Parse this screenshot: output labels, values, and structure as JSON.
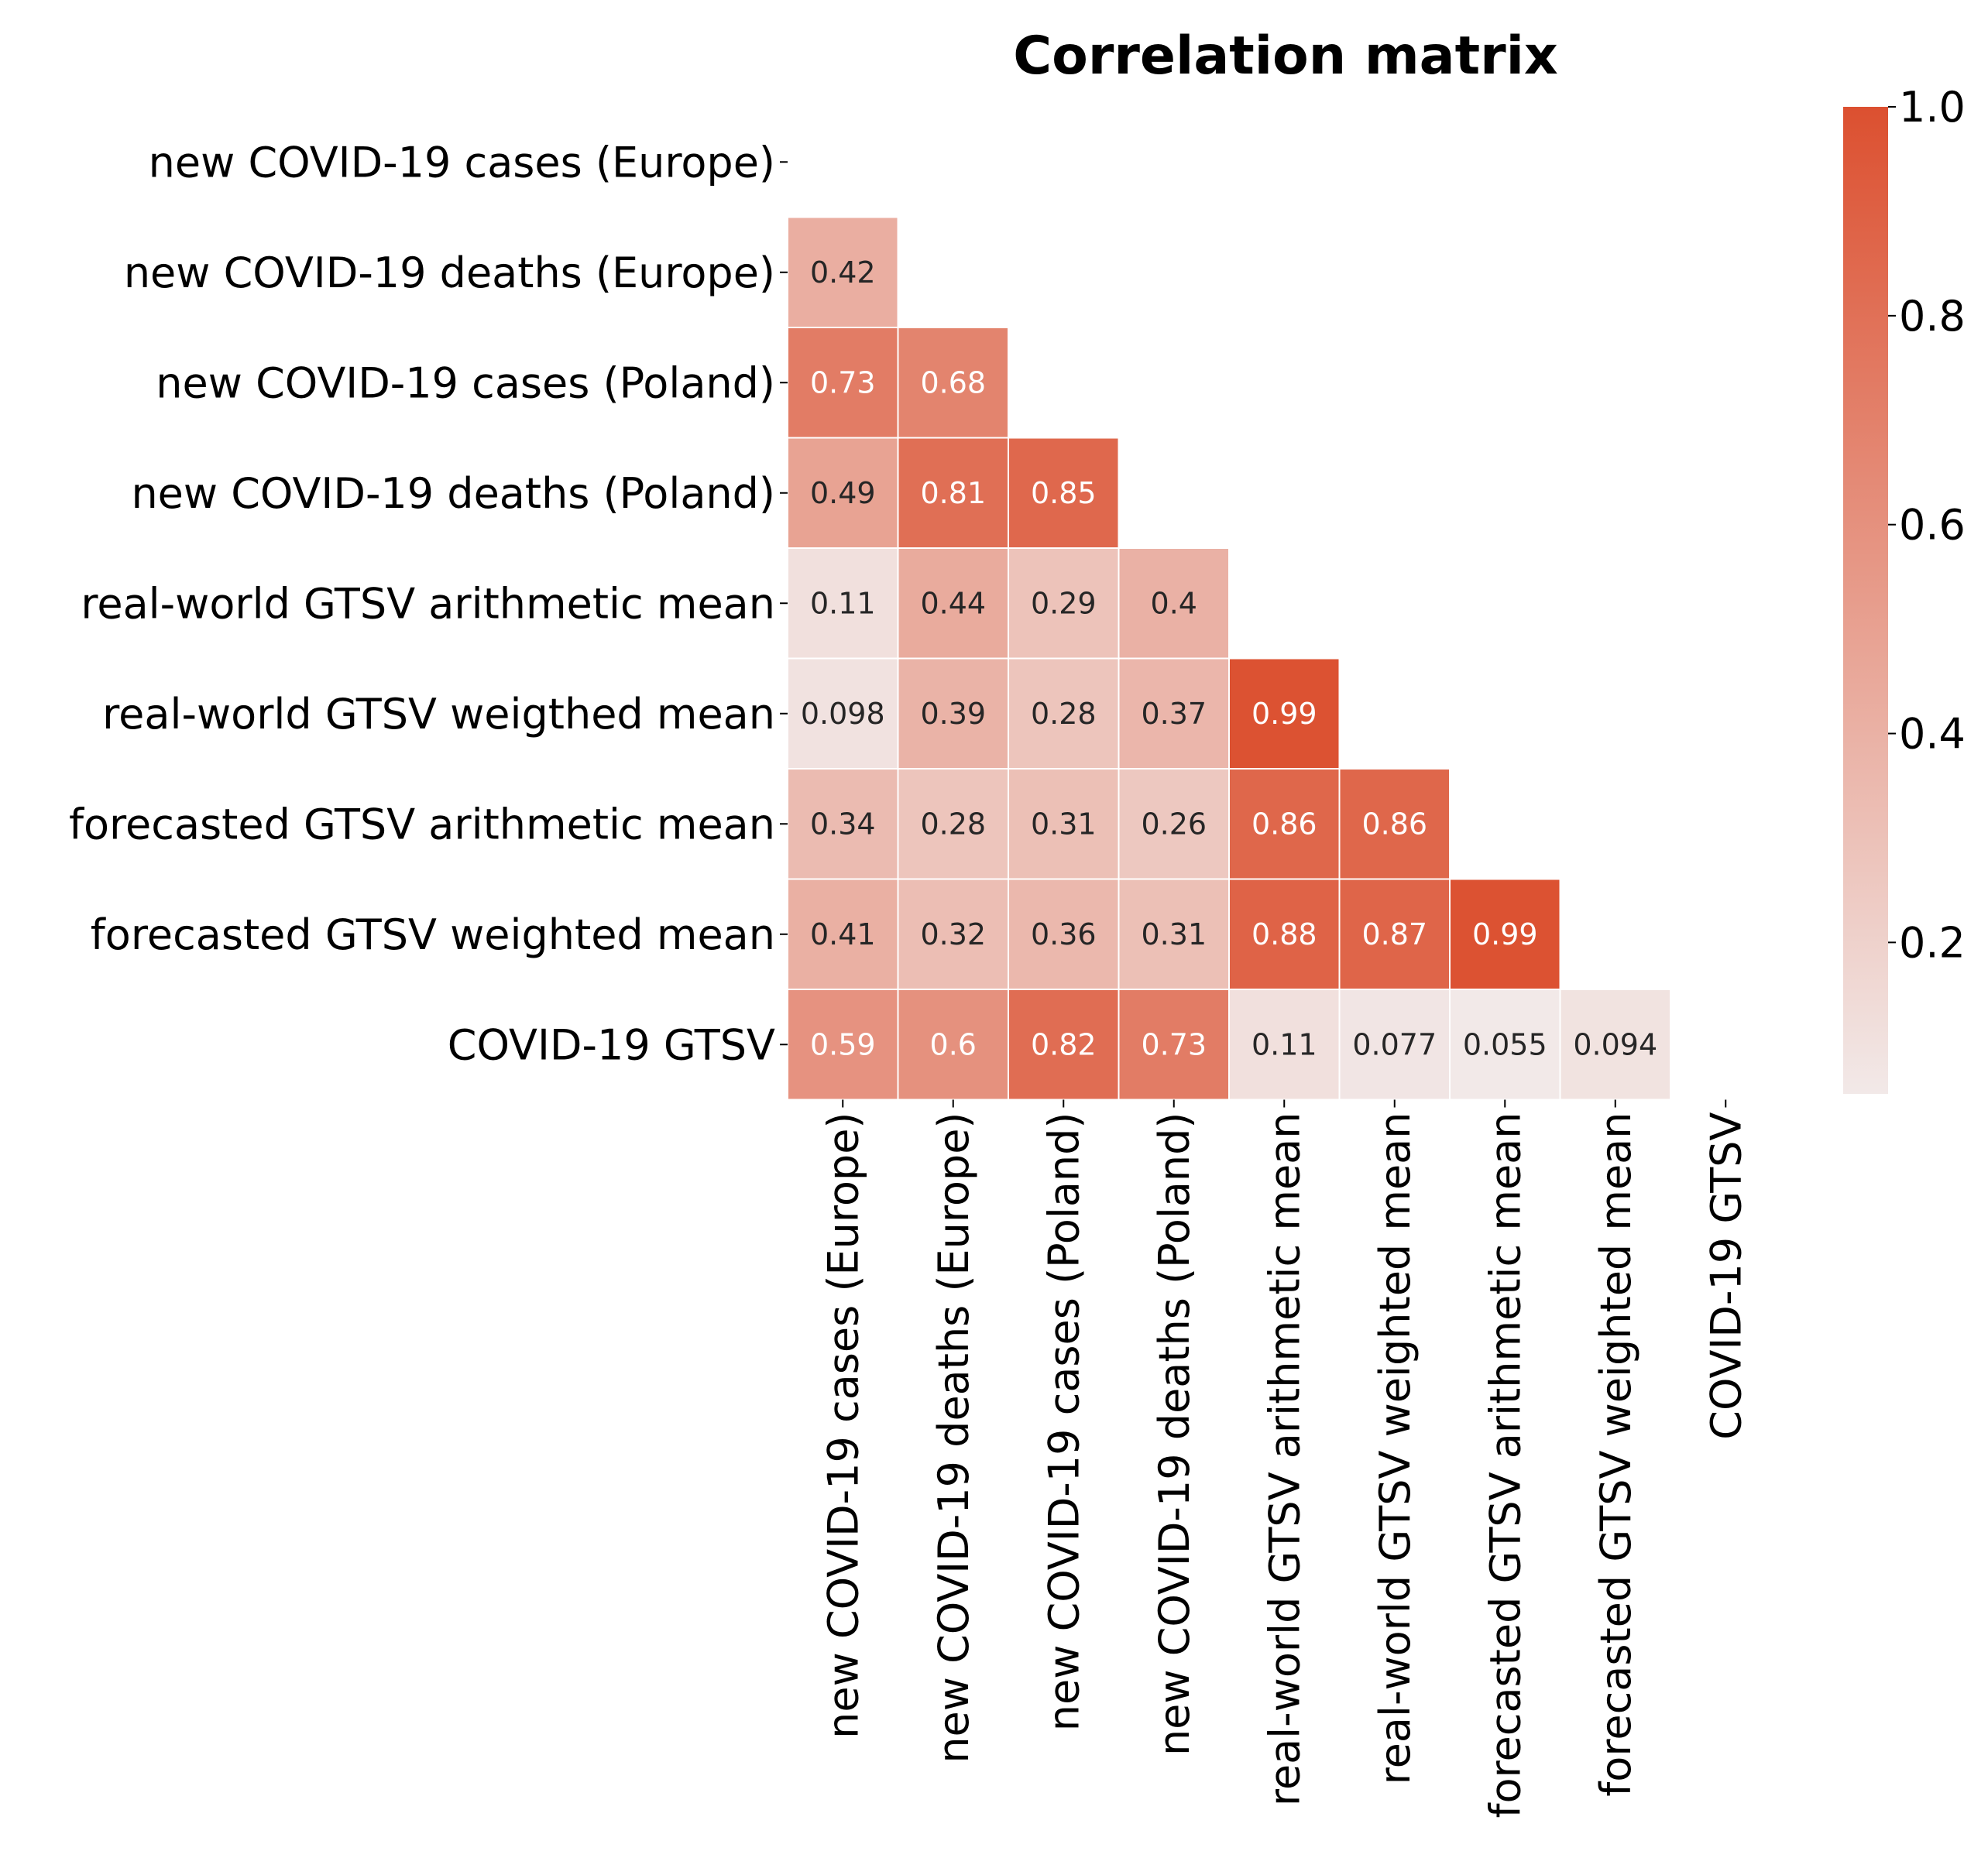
{
  "chart_data": {
    "type": "heatmap",
    "title": "Correlation matrix",
    "variables": [
      "new COVID-19 cases (Europe)",
      "new COVID-19 deaths (Europe)",
      "new COVID-19 cases (Poland)",
      "new COVID-19 deaths (Poland)",
      "real-world GTSV arithmetic mean",
      "real-world GTSV weigthed mean",
      "forecasted GTSV arithmetic mean",
      "forecasted GTSV weighted mean",
      "COVID-19 GTSV"
    ],
    "x_labels": [
      "new COVID-19 cases (Europe)",
      "new COVID-19 deaths (Europe)",
      "new COVID-19 cases (Poland)",
      "new COVID-19 deaths (Poland)",
      "real-world GTSV arithmetic mean",
      "real-world GTSV weighted mean",
      "forecasted GTSV arithmetic mean",
      "forecasted GTSV weighted mean",
      "COVID-19 GTSV"
    ],
    "lower_triangle": [
      [],
      [
        "0.42"
      ],
      [
        "0.73",
        "0.68"
      ],
      [
        "0.49",
        "0.81",
        "0.85"
      ],
      [
        "0.11",
        "0.44",
        "0.29",
        "0.4"
      ],
      [
        "0.098",
        "0.39",
        "0.28",
        "0.37",
        "0.99"
      ],
      [
        "0.34",
        "0.28",
        "0.31",
        "0.26",
        "0.86",
        "0.86"
      ],
      [
        "0.41",
        "0.32",
        "0.36",
        "0.31",
        "0.88",
        "0.87",
        "0.99"
      ],
      [
        "0.59",
        "0.6",
        "0.82",
        "0.73",
        "0.11",
        "0.077",
        "0.055",
        "0.094"
      ]
    ],
    "colorbar": {
      "vmin": 0.055,
      "vmax": 1.0,
      "ticks": [
        0.2,
        0.4,
        0.6,
        0.8,
        1.0
      ],
      "tick_labels": [
        "0.2",
        "0.4",
        "0.6",
        "0.8",
        "1.0"
      ],
      "color_low": "#f2e9e8",
      "color_high": "#dc5030"
    }
  }
}
